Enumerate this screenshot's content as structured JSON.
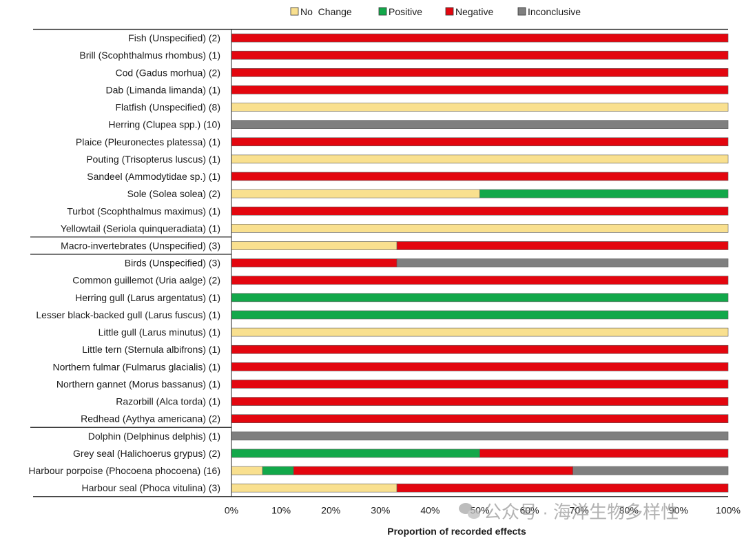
{
  "chart_data": {
    "type": "bar",
    "orientation": "horizontal",
    "stacked": true,
    "xlabel": "Proportion of recorded effects",
    "ylabel": "",
    "xlim": [
      0,
      100
    ],
    "x_ticks": [
      "0%",
      "10%",
      "20%",
      "30%",
      "40%",
      "50%",
      "60%",
      "70%",
      "80%",
      "90%",
      "100%"
    ],
    "legend_position": "top",
    "grid": false,
    "categories": [
      "Fish (Unspecified) (2)",
      "Brill (Scophthalmus rhombus) (1)",
      "Cod (Gadus morhua) (2)",
      "Dab (Limanda limanda) (1)",
      "Flatfish (Unspecified) (8)",
      "Herring (Clupea spp.) (10)",
      "Plaice (Pleuronectes platessa) (1)",
      "Pouting (Trisopterus luscus) (1)",
      "Sandeel (Ammodytidae sp.) (1)",
      "Sole (Solea solea) (2)",
      "Turbot (Scophthalmus maximus) (1)",
      "Yellowtail (Seriola quinqueradiata) (1)",
      "Macro-invertebrates (Unspecified) (3)",
      "Birds (Unspecified) (3)",
      "Common guillemot (Uria aalge) (2)",
      "Herring gull (Larus argentatus) (1)",
      "Lesser black-backed gull (Larus fuscus) (1)",
      "Little gull (Larus minutus) (1)",
      "Little tern (Sternula albifrons) (1)",
      "Northern fulmar (Fulmarus glacialis) (1)",
      "Northern gannet (Morus bassanus) (1)",
      "Razorbill (Alca torda) (1)",
      "Redhead (Aythya americana) (2)",
      "Dolphin (Delphinus delphis) (1)",
      "Grey seal (Halichoerus grypus) (2)",
      "Harbour porpoise (Phocoena phocoena) (16)",
      "Harbour seal (Phoca vitulina) (3)"
    ],
    "series": [
      {
        "name": "No  Change",
        "color": "#F9E08F",
        "values": [
          0,
          0,
          0,
          0,
          100,
          0,
          0,
          100,
          0,
          50,
          0,
          100,
          33.3,
          0,
          0,
          0,
          0,
          100,
          0,
          0,
          0,
          0,
          0,
          0,
          0,
          6.25,
          33.3
        ]
      },
      {
        "name": "Positive",
        "color": "#12A84A",
        "values": [
          0,
          0,
          0,
          0,
          0,
          0,
          0,
          0,
          0,
          50,
          0,
          0,
          0,
          0,
          0,
          100,
          100,
          0,
          0,
          0,
          0,
          0,
          0,
          0,
          50,
          6.25,
          0
        ]
      },
      {
        "name": "Negative",
        "color": "#E3060F",
        "values": [
          100,
          100,
          100,
          100,
          0,
          0,
          100,
          0,
          100,
          0,
          100,
          0,
          66.7,
          33.3,
          100,
          0,
          0,
          0,
          100,
          100,
          100,
          100,
          100,
          0,
          50,
          56.25,
          66.7
        ]
      },
      {
        "name": "Inconclusive",
        "color": "#7F7F7F",
        "values": [
          0,
          0,
          0,
          0,
          0,
          100,
          0,
          0,
          0,
          0,
          0,
          0,
          0,
          66.7,
          0,
          0,
          0,
          0,
          0,
          0,
          0,
          0,
          0,
          100,
          0,
          31.25,
          0
        ]
      }
    ],
    "group_separators_after": [
      11,
      12,
      22
    ]
  },
  "watermark": {
    "text": "公众号 · 海洋生物多样性",
    "icon": "wechat-bubble-icon"
  }
}
